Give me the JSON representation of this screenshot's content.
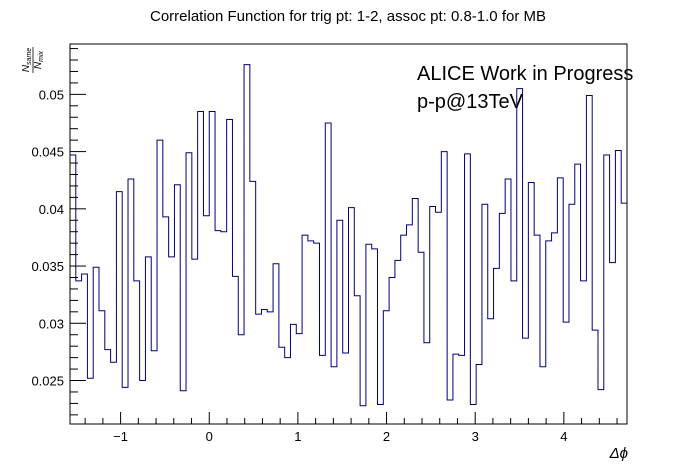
{
  "chart_data": {
    "type": "line",
    "style": "step-histogram",
    "title": "Correlation Function for trig pt: 1-2, assoc pt: 0.8-1.0 for MB",
    "xlabel": "Δϕ",
    "ylabel": {
      "numerator": "N",
      "numerator_sub": "same",
      "denominator": "N",
      "denominator_sub": "mix"
    },
    "annotations": [
      "ALICE Work in Progress",
      "p-p@13TeV"
    ],
    "xlim": [
      -1.5708,
      4.7124
    ],
    "ylim": [
      0.0212,
      0.0544
    ],
    "x_ticks": [
      -1,
      0,
      1,
      2,
      3,
      4
    ],
    "x_tick_labels": [
      "−1",
      "0",
      "1",
      "2",
      "3",
      "4"
    ],
    "y_ticks": [
      0.025,
      0.03,
      0.035,
      0.04,
      0.045,
      0.05
    ],
    "y_tick_labels": [
      "0.025",
      "0.03",
      "0.035",
      "0.04",
      "0.045",
      "0.05"
    ],
    "grid": false,
    "line_color": "#00007a",
    "series": [
      {
        "values": [
          0.0447,
          0.0337,
          0.0343,
          0.0252,
          0.0349,
          0.0311,
          0.0277,
          0.0266,
          0.0415,
          0.0244,
          0.0426,
          0.0337,
          0.025,
          0.0358,
          0.0276,
          0.046,
          0.0393,
          0.0358,
          0.0421,
          0.0241,
          0.0449,
          0.0356,
          0.0485,
          0.0394,
          0.0485,
          0.0381,
          0.038,
          0.0478,
          0.0341,
          0.029,
          0.0526,
          0.0424,
          0.0308,
          0.0312,
          0.031,
          0.0352,
          0.0279,
          0.027,
          0.0299,
          0.0291,
          0.0377,
          0.0372,
          0.037,
          0.0272,
          0.0475,
          0.0262,
          0.039,
          0.0274,
          0.0401,
          0.0324,
          0.0228,
          0.0369,
          0.0365,
          0.0229,
          0.0311,
          0.034,
          0.0355,
          0.0377,
          0.0386,
          0.0409,
          0.0362,
          0.0283,
          0.0402,
          0.0397,
          0.045,
          0.0233,
          0.0273,
          0.0272,
          0.0448,
          0.0229,
          0.0264,
          0.0404,
          0.0304,
          0.0348,
          0.0396,
          0.0426,
          0.0337,
          0.0505,
          0.0287,
          0.0423,
          0.0377,
          0.0262,
          0.0372,
          0.0379,
          0.0427,
          0.0301,
          0.0404,
          0.0439,
          0.0337,
          0.0499,
          0.0294,
          0.0242,
          0.0447,
          0.0353,
          0.0451,
          0.0405
        ]
      }
    ]
  }
}
